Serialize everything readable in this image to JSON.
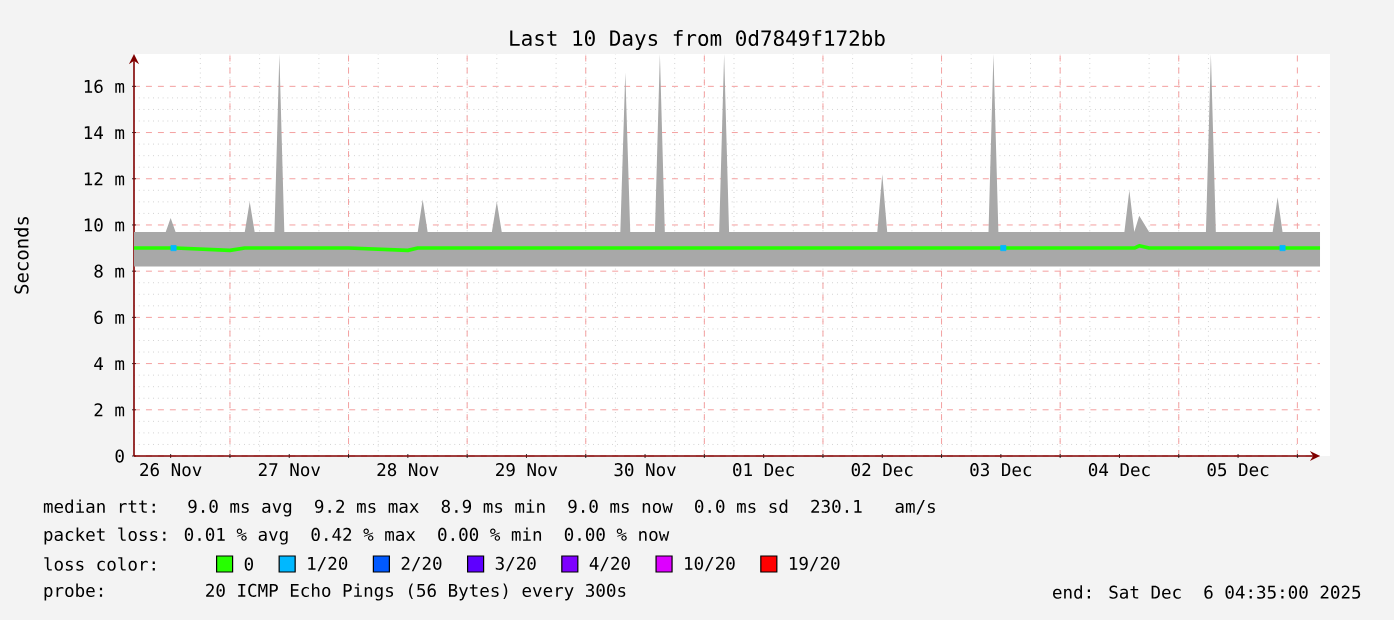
{
  "chart_data": {
    "type": "line",
    "title": "Last 10 Days from 0d7849f172bb",
    "ylabel": "Seconds",
    "x": [
      "2025-11-26T04:35",
      "2025-11-26T11:00",
      "2025-11-26T12:00",
      "2025-11-26T13:00",
      "2025-11-27T00:00",
      "2025-11-27T03:00",
      "2025-11-27T04:00",
      "2025-11-27T05:00",
      "2025-11-27T09:00",
      "2025-11-27T10:00",
      "2025-11-27T11:00",
      "2025-11-28T00:00",
      "2025-11-28T12:00",
      "2025-11-28T14:00",
      "2025-11-28T15:00",
      "2025-11-28T16:00",
      "2025-11-29T00:00",
      "2025-11-29T05:00",
      "2025-11-29T06:00",
      "2025-11-29T07:00",
      "2025-11-29T12:00",
      "2025-11-30T00:00",
      "2025-11-30T07:00",
      "2025-11-30T08:00",
      "2025-11-30T09:00",
      "2025-11-30T14:00",
      "2025-11-30T15:00",
      "2025-11-30T16:00",
      "2025-12-01T00:00",
      "2025-12-01T03:00",
      "2025-12-01T04:00",
      "2025-12-01T05:00",
      "2025-12-01T12:00",
      "2025-12-02T00:00",
      "2025-12-02T11:00",
      "2025-12-02T12:00",
      "2025-12-02T13:00",
      "2025-12-03T00:00",
      "2025-12-03T09:30",
      "2025-12-03T10:30",
      "2025-12-03T11:30",
      "2025-12-04T00:00",
      "2025-12-04T13:00",
      "2025-12-04T14:00",
      "2025-12-04T15:00",
      "2025-12-04T16:00",
      "2025-12-04T18:00",
      "2025-12-05T00:00",
      "2025-12-05T05:30",
      "2025-12-05T06:30",
      "2025-12-05T07:30",
      "2025-12-05T12:00",
      "2025-12-05T19:00",
      "2025-12-05T20:00",
      "2025-12-05T21:00",
      "2025-12-06T00:00",
      "2025-12-06T04:35"
    ],
    "series": [
      {
        "name": "0",
        "color": "#26ff00",
        "values": [
          9.0,
          9.0,
          9.0,
          9.0,
          8.9,
          9.0,
          9.0,
          9.0,
          9.0,
          9.0,
          9.0,
          9.0,
          8.9,
          9.0,
          9.0,
          9.0,
          9.0,
          9.0,
          9.0,
          9.0,
          9.0,
          9.0,
          9.0,
          9.0,
          9.0,
          9.0,
          9.0,
          9.0,
          9.0,
          9.0,
          9.0,
          9.0,
          9.0,
          9.0,
          9.0,
          9.0,
          9.0,
          9.0,
          9.0,
          9.0,
          9.0,
          9.0,
          9.0,
          9.0,
          9.0,
          9.1,
          9.0,
          9.0,
          9.0,
          9.0,
          9.0,
          9.0,
          9.0,
          9.0,
          9.0,
          9.0,
          9.0
        ],
        "lower": [
          8.2,
          8.2,
          8.2,
          8.2,
          8.2,
          8.2,
          8.2,
          8.2,
          8.2,
          8.2,
          8.2,
          8.2,
          8.2,
          8.2,
          8.2,
          8.2,
          8.2,
          8.2,
          8.2,
          8.2,
          8.2,
          8.2,
          8.2,
          8.2,
          8.2,
          8.2,
          8.2,
          8.2,
          8.2,
          8.2,
          8.2,
          8.2,
          8.2,
          8.2,
          8.2,
          8.2,
          8.2,
          8.2,
          8.2,
          8.2,
          8.2,
          8.2,
          8.2,
          8.2,
          8.2,
          8.2,
          8.2,
          8.2,
          8.2,
          8.2,
          8.2,
          8.2,
          8.2,
          8.2,
          8.2,
          8.2,
          8.2
        ],
        "upper": [
          9.7,
          9.7,
          10.3,
          9.7,
          9.7,
          9.7,
          11.0,
          9.7,
          9.7,
          17.4,
          9.7,
          9.7,
          9.7,
          9.7,
          11.1,
          9.7,
          9.7,
          9.7,
          11.0,
          9.7,
          9.7,
          9.7,
          9.7,
          16.6,
          9.7,
          9.7,
          17.4,
          9.7,
          9.7,
          9.7,
          17.4,
          9.7,
          9.7,
          9.7,
          9.7,
          12.2,
          9.7,
          9.7,
          9.7,
          17.4,
          9.7,
          9.7,
          9.7,
          11.5,
          9.7,
          10.4,
          9.7,
          9.7,
          9.7,
          17.4,
          9.7,
          9.7,
          9.7,
          11.2,
          9.7,
          9.7,
          9.7
        ]
      },
      {
        "name": "1/20",
        "color": "#00b8ff",
        "type": "scatter",
        "x": [
          "2025-11-26T12:35",
          "2025-12-03T12:30",
          "2025-12-05T21:00"
        ],
        "values": [
          9.0,
          9.0,
          9.0
        ]
      },
      {
        "name": "2/20",
        "color": "#0059ff",
        "values": [
          null,
          null,
          null,
          null,
          null,
          null,
          null,
          null,
          null,
          null,
          null,
          null,
          null,
          null,
          null,
          null,
          null,
          null,
          null,
          null,
          null,
          null,
          null,
          null,
          null,
          null,
          null,
          null,
          null,
          null,
          null,
          null,
          null,
          null,
          null,
          null,
          null,
          null,
          null,
          null,
          null,
          null,
          null,
          null,
          null,
          null,
          null,
          null,
          null,
          null,
          null,
          null,
          null,
          null,
          null,
          null,
          null
        ]
      },
      {
        "name": "3/20",
        "color": "#5e00ff",
        "values": [
          null,
          null,
          null,
          null,
          null,
          null,
          null,
          null,
          null,
          null,
          null,
          null,
          null,
          null,
          null,
          null,
          null,
          null,
          null,
          null,
          null,
          null,
          null,
          null,
          null,
          null,
          null,
          null,
          null,
          null,
          null,
          null,
          null,
          null,
          null,
          null,
          null,
          null,
          null,
          null,
          null,
          null,
          null,
          null,
          null,
          null,
          null,
          null,
          null,
          null,
          null,
          null,
          null,
          null,
          null,
          null,
          null
        ]
      },
      {
        "name": "4/20",
        "color": "#7e00ff",
        "values": [
          null,
          null,
          null,
          null,
          null,
          null,
          null,
          null,
          null,
          null,
          null,
          null,
          null,
          null,
          null,
          null,
          null,
          null,
          null,
          null,
          null,
          null,
          null,
          null,
          null,
          null,
          null,
          null,
          null,
          null,
          null,
          null,
          null,
          null,
          null,
          null,
          null,
          null,
          null,
          null,
          null,
          null,
          null,
          null,
          null,
          null,
          null,
          null,
          null,
          null,
          null,
          null,
          null,
          null,
          null,
          null,
          null
        ]
      },
      {
        "name": "10/20",
        "color": "#dd00ff",
        "values": [
          null,
          null,
          null,
          null,
          null,
          null,
          null,
          null,
          null,
          null,
          null,
          null,
          null,
          null,
          null,
          null,
          null,
          null,
          null,
          null,
          null,
          null,
          null,
          null,
          null,
          null,
          null,
          null,
          null,
          null,
          null,
          null,
          null,
          null,
          null,
          null,
          null,
          null,
          null,
          null,
          null,
          null,
          null,
          null,
          null,
          null,
          null,
          null,
          null,
          null,
          null,
          null,
          null,
          null,
          null,
          null,
          null
        ]
      },
      {
        "name": "19/20",
        "color": "#ff0000",
        "values": [
          null,
          null,
          null,
          null,
          null,
          null,
          null,
          null,
          null,
          null,
          null,
          null,
          null,
          null,
          null,
          null,
          null,
          null,
          null,
          null,
          null,
          null,
          null,
          null,
          null,
          null,
          null,
          null,
          null,
          null,
          null,
          null,
          null,
          null,
          null,
          null,
          null,
          null,
          null,
          null,
          null,
          null,
          null,
          null,
          null,
          null,
          null,
          null,
          null,
          null,
          null,
          null,
          null,
          null,
          null,
          null,
          null
        ]
      }
    ],
    "xlim": [
      "2025-11-26T04:35",
      "2025-12-06T04:35"
    ],
    "xticks": [
      {
        "value": "2025-11-26T12:00",
        "label": "26 Nov"
      },
      {
        "value": "2025-11-27T12:00",
        "label": "27 Nov"
      },
      {
        "value": "2025-11-28T12:00",
        "label": "28 Nov"
      },
      {
        "value": "2025-11-29T12:00",
        "label": "29 Nov"
      },
      {
        "value": "2025-11-30T12:00",
        "label": "30 Nov"
      },
      {
        "value": "2025-12-01T12:00",
        "label": "01 Dec"
      },
      {
        "value": "2025-12-02T12:00",
        "label": "02 Dec"
      },
      {
        "value": "2025-12-03T12:00",
        "label": "03 Dec"
      },
      {
        "value": "2025-12-04T12:00",
        "label": "04 Dec"
      },
      {
        "value": "2025-12-05T12:00",
        "label": "05 Dec"
      },
      {
        "value": "2025-11-27T00:00",
        "label": null
      },
      {
        "value": "2025-11-28T00:00",
        "label": null
      },
      {
        "value": "2025-11-29T00:00",
        "label": null
      },
      {
        "value": "2025-11-30T00:00",
        "label": null
      },
      {
        "value": "2025-12-01T00:00",
        "label": null
      },
      {
        "value": "2025-12-02T00:00",
        "label": null
      },
      {
        "value": "2025-12-03T00:00",
        "label": null
      },
      {
        "value": "2025-12-04T00:00",
        "label": null
      },
      {
        "value": "2025-12-05T00:00",
        "label": null
      },
      {
        "value": "2025-12-06T00:00",
        "label": null
      }
    ],
    "ylim": [
      0,
      17.4
    ],
    "yticks": [
      0,
      {
        "value": 2,
        "label": "2 m"
      },
      {
        "value": 4,
        "label": "4 m"
      },
      {
        "value": 6,
        "label": "6 m"
      },
      {
        "value": 8,
        "label": "8 m"
      },
      {
        "value": 10,
        "label": "10 m"
      },
      {
        "value": 12,
        "label": "12 m"
      },
      {
        "value": 14,
        "label": "14 m"
      },
      {
        "value": 16,
        "label": "16 m"
      }
    ],
    "grid": true,
    "legend": "bottom",
    "annotations": [
      "median rtt:  9.0 ms avg  9.2 ms max  8.9 ms min  9.0 ms now  0.0 ms sd  230.1   am/s",
      "packet loss: 0.01 % avg  0.42 % max  0.00 % min  0.00 % now",
      "loss color:",
      "probe:       20 ICMP Echo Pings (56 Bytes) every 300s",
      "end: Sat Dec  6 04:35:00 2025"
    ]
  }
}
